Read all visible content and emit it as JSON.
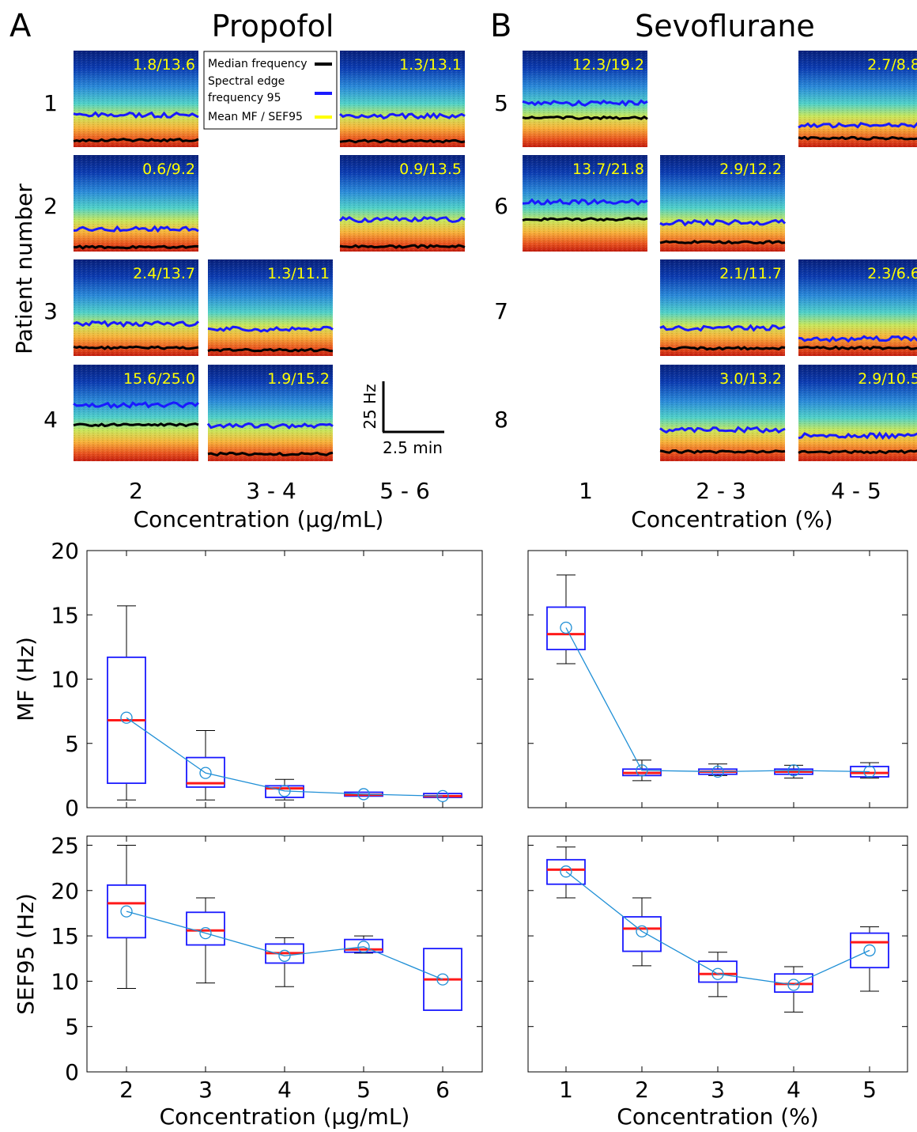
{
  "panel_letters": [
    "A",
    "B"
  ],
  "titles": {
    "propofol": "Propofol",
    "sevoflurane": "Sevoflurane"
  },
  "spectrogram_section": {
    "ylabel": "Patient number",
    "legend": {
      "mf": "Median frequency",
      "sef_line1": "Spectral edge",
      "sef_line2": "frequency 95",
      "mean": "Mean MF / SEF95"
    },
    "colors": {
      "mf_line": "#000000",
      "sef_line": "#1a1aff",
      "mean_text": "#ffff00"
    },
    "scale_bar": {
      "y": "25 Hz",
      "x": "2.5 min"
    },
    "propofol": {
      "patients": [
        "1",
        "2",
        "3",
        "4"
      ],
      "columns": [
        "2",
        "3 - 4",
        "5 - 6"
      ],
      "xlabel": "Concentration (µg/mL)",
      "tiles": [
        {
          "row": 0,
          "col": 0,
          "label": "1.8/13.6",
          "mf": 1.8,
          "sef95": 13.6
        },
        {
          "row": 0,
          "col": 2,
          "label": "1.3/13.1",
          "mf": 1.3,
          "sef95": 13.1
        },
        {
          "row": 1,
          "col": 0,
          "label": "0.6/9.2",
          "mf": 0.6,
          "sef95": 9.2
        },
        {
          "row": 1,
          "col": 2,
          "label": "0.9/13.5",
          "mf": 0.9,
          "sef95": 13.5
        },
        {
          "row": 2,
          "col": 0,
          "label": "2.4/13.7",
          "mf": 2.4,
          "sef95": 13.7
        },
        {
          "row": 2,
          "col": 1,
          "label": "1.3/11.1",
          "mf": 1.3,
          "sef95": 11.1
        },
        {
          "row": 3,
          "col": 0,
          "label": "15.6/25.0",
          "mf": 15.6,
          "sef95": 25.0
        },
        {
          "row": 3,
          "col": 1,
          "label": "1.9/15.2",
          "mf": 1.9,
          "sef95": 15.2
        }
      ]
    },
    "sevoflurane": {
      "patients": [
        "5",
        "6",
        "7",
        "8"
      ],
      "columns": [
        "1",
        "2 - 3",
        "4 - 5"
      ],
      "xlabel": "Concentration (%)",
      "tiles": [
        {
          "row": 0,
          "col": 0,
          "label": "12.3/19.2",
          "mf": 12.3,
          "sef95": 19.2
        },
        {
          "row": 0,
          "col": 2,
          "label": "2.7/8.8",
          "mf": 2.7,
          "sef95": 8.8
        },
        {
          "row": 1,
          "col": 0,
          "label": "13.7/21.8",
          "mf": 13.7,
          "sef95": 21.8
        },
        {
          "row": 1,
          "col": 1,
          "label": "2.9/12.2",
          "mf": 2.9,
          "sef95": 12.2
        },
        {
          "row": 2,
          "col": 1,
          "label": "2.1/11.7",
          "mf": 2.1,
          "sef95": 11.7
        },
        {
          "row": 2,
          "col": 2,
          "label": "2.3/6.6",
          "mf": 2.3,
          "sef95": 6.6
        },
        {
          "row": 3,
          "col": 1,
          "label": "3.0/13.2",
          "mf": 3.0,
          "sef95": 13.2
        },
        {
          "row": 3,
          "col": 2,
          "label": "2.9/10.5",
          "mf": 2.9,
          "sef95": 10.5
        }
      ]
    }
  },
  "chart_data": [
    {
      "type": "box",
      "xlabel": "",
      "ylabel": "MF (Hz)",
      "ylim": [
        0,
        20
      ],
      "yticks": [
        0,
        5,
        10,
        15,
        20
      ],
      "categories": [
        "2",
        "3",
        "4",
        "5",
        "6"
      ],
      "show_xticks": false,
      "boxes": [
        {
          "min": 0.6,
          "q1": 1.9,
          "median": 6.8,
          "q3": 11.7,
          "max": 15.7,
          "mean": 7.0
        },
        {
          "min": 0.6,
          "q1": 1.6,
          "median": 1.9,
          "q3": 3.9,
          "max": 6.0,
          "mean": 2.7
        },
        {
          "min": 0.6,
          "q1": 0.8,
          "median": 1.5,
          "q3": 1.7,
          "max": 2.2,
          "mean": 1.3
        },
        {
          "min": 0.9,
          "q1": 0.9,
          "median": 1.0,
          "q3": 1.2,
          "max": 1.2,
          "mean": 1.05
        },
        {
          "min": 0.8,
          "q1": 0.8,
          "median": 0.9,
          "q3": 1.1,
          "max": 1.1,
          "mean": 0.9
        }
      ]
    },
    {
      "type": "box",
      "xlabel": "",
      "ylabel": "",
      "ylim": [
        0,
        20
      ],
      "yticks": [
        0,
        5,
        10,
        15,
        20
      ],
      "categories": [
        "1",
        "2",
        "3",
        "4",
        "5"
      ],
      "show_xticks": false,
      "boxes": [
        {
          "min": 11.2,
          "q1": 12.3,
          "median": 13.5,
          "q3": 15.6,
          "max": 18.1,
          "mean": 14.0
        },
        {
          "min": 2.1,
          "q1": 2.5,
          "median": 2.7,
          "q3": 3.0,
          "max": 3.7,
          "mean": 2.9
        },
        {
          "min": 2.5,
          "q1": 2.6,
          "median": 2.8,
          "q3": 3.0,
          "max": 3.4,
          "mean": 2.8
        },
        {
          "min": 2.3,
          "q1": 2.6,
          "median": 2.8,
          "q3": 3.0,
          "max": 3.3,
          "mean": 2.9
        },
        {
          "min": 2.3,
          "q1": 2.4,
          "median": 2.7,
          "q3": 3.2,
          "max": 3.5,
          "mean": 2.8
        }
      ]
    },
    {
      "type": "box",
      "xlabel": "Concentration (µg/mL)",
      "ylabel": "SEF95 (Hz)",
      "ylim": [
        0,
        26
      ],
      "yticks": [
        0,
        5,
        10,
        15,
        20,
        25
      ],
      "categories": [
        "2",
        "3",
        "4",
        "5",
        "6"
      ],
      "show_xticks": true,
      "boxes": [
        {
          "min": 9.2,
          "q1": 14.8,
          "median": 18.6,
          "q3": 20.6,
          "max": 25.0,
          "mean": 17.7
        },
        {
          "min": 9.8,
          "q1": 14.0,
          "median": 15.6,
          "q3": 17.6,
          "max": 19.2,
          "mean": 15.3
        },
        {
          "min": 9.4,
          "q1": 12.0,
          "median": 13.1,
          "q3": 14.1,
          "max": 14.8,
          "mean": 12.8
        },
        {
          "min": 13.1,
          "q1": 13.2,
          "median": 13.5,
          "q3": 14.6,
          "max": 15.0,
          "mean": 13.8
        },
        {
          "min": 6.8,
          "q1": 6.8,
          "median": 10.2,
          "q3": 13.6,
          "max": 13.6,
          "mean": 10.2
        }
      ]
    },
    {
      "type": "box",
      "xlabel": "Concentration (%)",
      "ylabel": "",
      "ylim": [
        0,
        26
      ],
      "yticks": [
        0,
        5,
        10,
        15,
        20,
        25
      ],
      "categories": [
        "1",
        "2",
        "3",
        "4",
        "5"
      ],
      "show_xticks": true,
      "boxes": [
        {
          "min": 19.2,
          "q1": 20.7,
          "median": 22.3,
          "q3": 23.4,
          "max": 24.8,
          "mean": 22.1
        },
        {
          "min": 11.7,
          "q1": 13.3,
          "median": 15.8,
          "q3": 17.1,
          "max": 19.2,
          "mean": 15.5
        },
        {
          "min": 8.3,
          "q1": 9.9,
          "median": 10.8,
          "q3": 12.2,
          "max": 13.2,
          "mean": 10.8
        },
        {
          "min": 6.6,
          "q1": 8.8,
          "median": 9.7,
          "q3": 10.8,
          "max": 11.6,
          "mean": 9.6
        },
        {
          "min": 8.9,
          "q1": 11.5,
          "median": 14.3,
          "q3": 15.3,
          "max": 16.0,
          "mean": 13.4
        }
      ]
    }
  ]
}
